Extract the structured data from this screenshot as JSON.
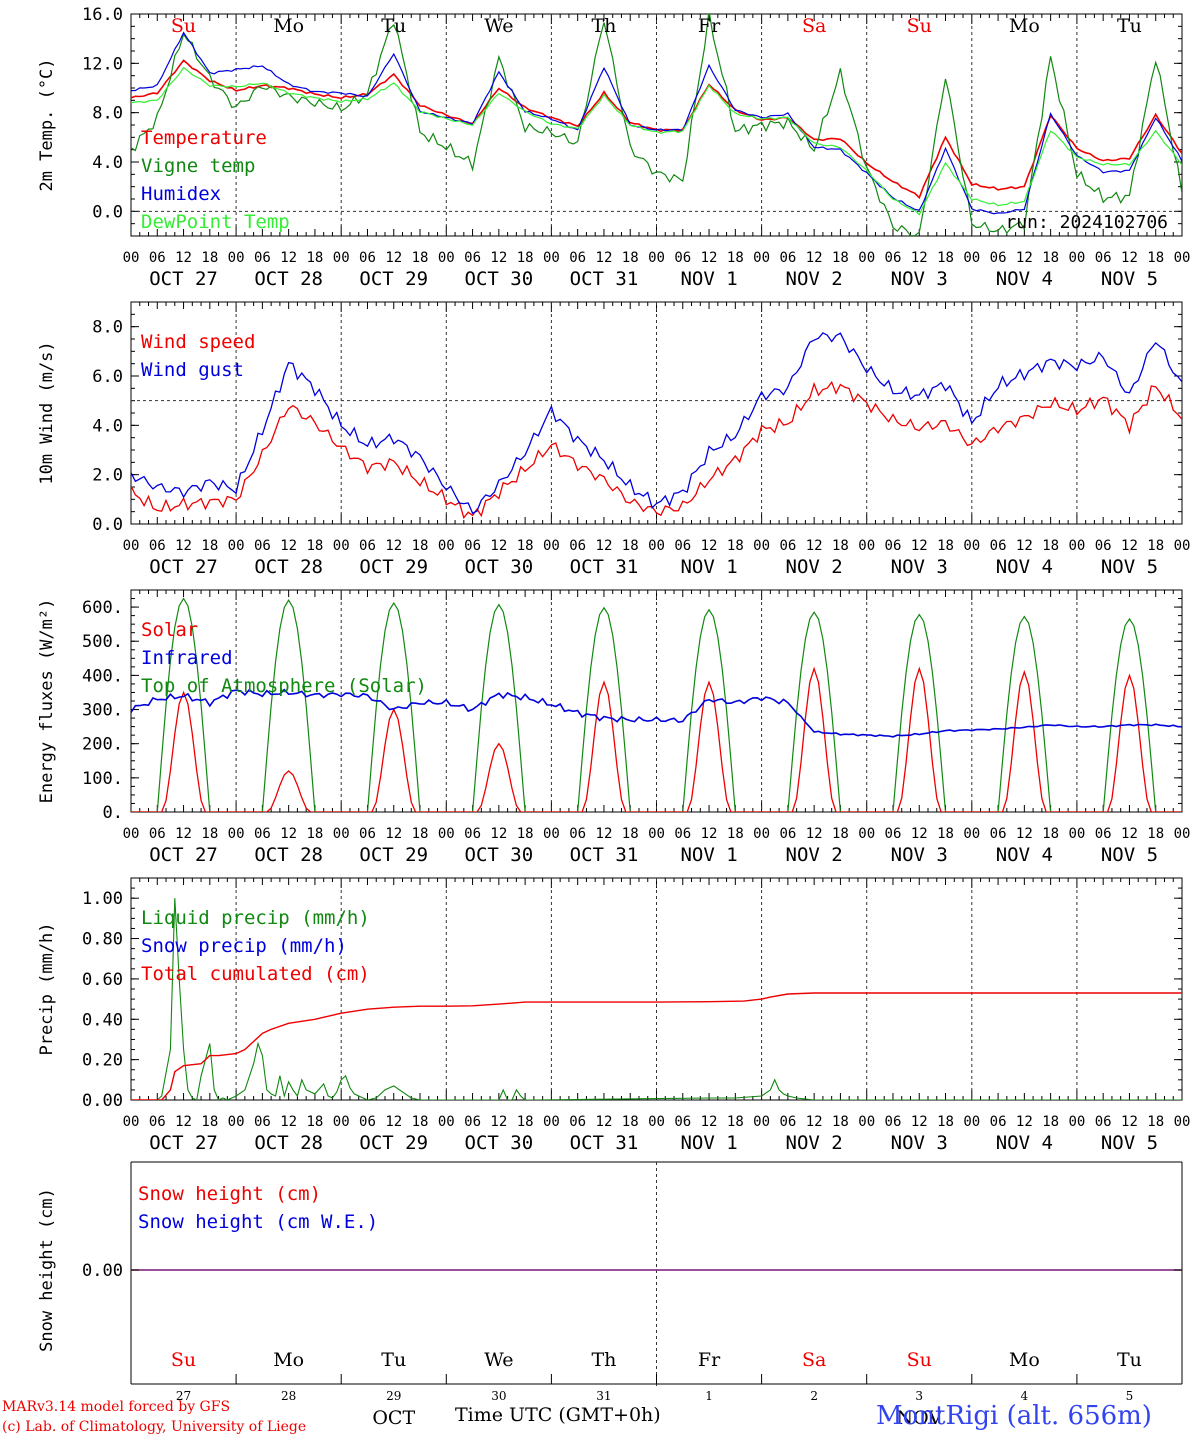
{
  "colors": {
    "red": "#ee0000",
    "green": "#118811",
    "blue": "#0000dd",
    "lightgreen": "#33ee33",
    "purple": "#7a2b8c",
    "titleblue": "#3344ee"
  },
  "day_labels": [
    "Su",
    "Mo",
    "Tu",
    "We",
    "Th",
    "Fr",
    "Sa",
    "Su",
    "Mo",
    "Tu"
  ],
  "day_label_colors": [
    "red",
    "black",
    "black",
    "black",
    "black",
    "black",
    "red",
    "red",
    "black",
    "black"
  ],
  "date_labels": [
    "OCT 27",
    "OCT 28",
    "OCT 29",
    "OCT 30",
    "OCT 31",
    "NOV  1",
    "NOV  2",
    "NOV  3",
    "NOV  4",
    "NOV  5"
  ],
  "hour_labels": [
    "00",
    "06",
    "12",
    "18"
  ],
  "bottom_day_numbers": [
    "27",
    "28",
    "29",
    "30",
    "31",
    "1",
    "2",
    "3",
    "4",
    "5"
  ],
  "bottom_month_labels": [
    "OCT",
    "NOV"
  ],
  "footer": {
    "model": "MARv3.14 model forced by GFS",
    "credit": "(c) Lab. of Climatology, University of Liege",
    "xlabel": "Time UTC (GMT+0h)",
    "station": "MontRigi (alt. 656m)"
  },
  "chart_data": [
    {
      "type": "line",
      "ylabel": "2m Temp. (°C)",
      "ylim": [
        -2,
        16
      ],
      "yticks": [
        0,
        4,
        8,
        12,
        16
      ],
      "ytick_labels": [
        "0.0",
        "4.0",
        "8.0",
        "12.0",
        "16.0"
      ],
      "hline": 0,
      "annotation": "run: 2024102706",
      "x_hours": [
        0,
        6,
        12,
        18,
        24,
        30,
        36,
        42,
        48,
        54,
        60,
        66,
        72,
        78,
        84,
        90,
        96,
        102,
        108,
        114,
        120,
        126,
        132,
        138,
        144,
        150,
        156,
        162,
        168,
        174,
        180,
        186,
        192,
        198,
        204,
        210,
        216,
        222,
        228,
        234,
        240
      ],
      "series": [
        {
          "name": "Temperature",
          "color": "red",
          "values": [
            9.2,
            9.6,
            12.2,
            10.6,
            9.8,
            10.2,
            10.0,
            9.5,
            9.2,
            9.5,
            11.1,
            8.6,
            7.8,
            7.1,
            10.0,
            8.4,
            7.6,
            6.9,
            9.6,
            7.2,
            6.6,
            6.6,
            10.3,
            8.2,
            7.4,
            7.6,
            5.8,
            5.9,
            3.9,
            2.4,
            1.2,
            6.0,
            2.2,
            1.8,
            2.0,
            7.8,
            5.1,
            4.1,
            4.3,
            7.8,
            4.7
          ]
        },
        {
          "name": "Vigne temp",
          "color": "green",
          "values": [
            5.0,
            7.5,
            14.5,
            10.8,
            8.4,
            10.2,
            9.3,
            8.8,
            8.3,
            9.5,
            15.6,
            6.4,
            5.2,
            3.8,
            12.4,
            6.8,
            6.4,
            5.5,
            15.6,
            5.1,
            3.1,
            2.5,
            15.8,
            6.5,
            7.0,
            7.2,
            5.0,
            11.2,
            3.5,
            -1.2,
            -2.0,
            11.0,
            -1.0,
            -1.6,
            -1.0,
            12.5,
            3.0,
            1.1,
            1.2,
            12.5,
            1.5
          ]
        },
        {
          "name": "Humidex",
          "color": "blue",
          "values": [
            9.8,
            10.2,
            14.5,
            11.2,
            11.5,
            11.8,
            10.3,
            9.7,
            9.6,
            9.3,
            12.8,
            8.1,
            7.6,
            7.1,
            11.3,
            8.1,
            7.5,
            6.6,
            11.7,
            7.0,
            6.6,
            6.6,
            11.8,
            8.2,
            7.6,
            7.9,
            5.2,
            5.0,
            3.1,
            1.1,
            0.0,
            5.1,
            0.2,
            -0.2,
            0.2,
            7.9,
            4.5,
            3.2,
            3.3,
            7.6,
            4.1
          ]
        },
        {
          "name": "DewPoint Temp",
          "color": "lightgreen",
          "values": [
            8.8,
            9.0,
            11.6,
            10.2,
            10.1,
            10.4,
            9.6,
            9.2,
            8.9,
            9.1,
            10.4,
            8.1,
            7.5,
            7.0,
            9.6,
            8.1,
            7.1,
            6.7,
            9.4,
            7.0,
            6.4,
            6.5,
            10.2,
            7.9,
            7.5,
            7.6,
            5.5,
            5.2,
            3.3,
            1.0,
            -0.2,
            3.9,
            1.0,
            0.5,
            0.8,
            6.6,
            4.4,
            3.8,
            3.8,
            6.5,
            3.8
          ]
        }
      ]
    },
    {
      "type": "line",
      "ylabel": "10m Wind (m/s)",
      "ylim": [
        0,
        9
      ],
      "yticks": [
        0,
        2,
        4,
        6,
        8
      ],
      "ytick_labels": [
        "0.0",
        "2.0",
        "4.0",
        "6.0",
        "8.0"
      ],
      "hline": 5,
      "x_hours": [
        0,
        6,
        12,
        18,
        24,
        30,
        36,
        42,
        48,
        54,
        60,
        66,
        72,
        78,
        84,
        90,
        96,
        102,
        108,
        114,
        120,
        126,
        132,
        138,
        144,
        150,
        156,
        162,
        168,
        174,
        180,
        186,
        192,
        198,
        204,
        210,
        216,
        222,
        228,
        234,
        240
      ],
      "series": [
        {
          "name": "Wind speed",
          "color": "red",
          "values": [
            1.3,
            0.6,
            0.8,
            0.9,
            1.0,
            2.8,
            4.8,
            4.1,
            3.1,
            2.3,
            2.5,
            1.7,
            1.0,
            0.3,
            1.3,
            2.2,
            3.2,
            2.4,
            1.8,
            0.9,
            0.5,
            0.7,
            1.8,
            2.6,
            3.8,
            4.1,
            5.4,
            5.6,
            4.9,
            4.2,
            3.9,
            4.1,
            3.2,
            3.9,
            4.3,
            4.9,
            4.6,
            5.1,
            4.0,
            5.6,
            4.3
          ]
        },
        {
          "name": "Wind gust",
          "color": "blue",
          "values": [
            2.0,
            1.5,
            1.3,
            1.7,
            1.4,
            3.8,
            6.5,
            5.5,
            4.0,
            3.2,
            3.5,
            2.7,
            1.5,
            0.5,
            1.6,
            2.9,
            4.6,
            3.4,
            2.6,
            1.5,
            0.8,
            1.3,
            2.9,
            3.6,
            5.2,
            5.5,
            7.6,
            7.6,
            6.3,
            5.4,
            5.2,
            5.7,
            4.1,
            5.6,
            6.1,
            6.6,
            6.4,
            6.8,
            5.2,
            7.5,
            5.6
          ]
        }
      ]
    },
    {
      "type": "line",
      "ylabel": "Energy fluxes (W/m²)",
      "ylim": [
        0,
        650
      ],
      "yticks": [
        0,
        100,
        200,
        300,
        400,
        500,
        600
      ],
      "ytick_labels": [
        "0.",
        "100.",
        "200.",
        "300.",
        "400.",
        "500.",
        "600."
      ],
      "series": [
        {
          "name": "Solar",
          "color": "red",
          "peak_values": [
            350,
            120,
            300,
            200,
            380,
            380,
            420,
            420,
            410,
            400
          ]
        },
        {
          "name": "Infrared",
          "color": "blue",
          "x_hours": [
            0,
            6,
            12,
            18,
            24,
            30,
            36,
            42,
            48,
            54,
            60,
            66,
            72,
            78,
            84,
            90,
            96,
            102,
            108,
            114,
            120,
            126,
            132,
            138,
            144,
            150,
            156,
            162,
            168,
            174,
            180,
            186,
            192,
            198,
            204,
            210,
            216,
            222,
            228,
            234,
            240
          ],
          "values": [
            300,
            330,
            340,
            320,
            355,
            345,
            350,
            342,
            345,
            340,
            300,
            320,
            320,
            300,
            345,
            335,
            315,
            290,
            275,
            270,
            270,
            268,
            330,
            320,
            335,
            320,
            235,
            228,
            225,
            222,
            228,
            238,
            240,
            243,
            248,
            255,
            250,
            250,
            255,
            255,
            250
          ]
        },
        {
          "name": "Top of Atmosphere (Solar)",
          "color": "green",
          "peak_values": [
            625,
            620,
            612,
            607,
            598,
            592,
            585,
            578,
            572,
            565
          ]
        }
      ]
    },
    {
      "type": "line",
      "ylabel": "Precip (mm/h)",
      "ylim": [
        0,
        1.1
      ],
      "yticks": [
        0,
        0.2,
        0.4,
        0.6,
        0.8,
        1.0
      ],
      "ytick_labels": [
        "0.00",
        "0.20",
        "0.40",
        "0.60",
        "0.80",
        "1.00"
      ],
      "series": [
        {
          "name": "Liquid precip (mm/h)",
          "color": "green",
          "x_hours": [
            0,
            6,
            7,
            9,
            10,
            11,
            12,
            13,
            14,
            15,
            16,
            18,
            19,
            20,
            21,
            22,
            24,
            26,
            28,
            29,
            30,
            31,
            32,
            33,
            34,
            35,
            36,
            37,
            38,
            39,
            40,
            42,
            44,
            45,
            46,
            47,
            48,
            49,
            50,
            51,
            52,
            54,
            56,
            58,
            60,
            62,
            64,
            66,
            68,
            70,
            72,
            84,
            85,
            86,
            87,
            88,
            89,
            90,
            92,
            132,
            138,
            144,
            146,
            147,
            148,
            149,
            150,
            152,
            156,
            240
          ],
          "values": [
            0,
            0,
            0.02,
            0.25,
            1.0,
            0.6,
            0.25,
            0.05,
            0.01,
            0.0,
            0.12,
            0.28,
            0.05,
            0.0,
            0.01,
            0.0,
            0.02,
            0.05,
            0.18,
            0.28,
            0.22,
            0.05,
            0.03,
            0.02,
            0.12,
            0.02,
            0.09,
            0.05,
            0.02,
            0.1,
            0.05,
            0.03,
            0.08,
            0.02,
            0.01,
            0.04,
            0.1,
            0.12,
            0.06,
            0.03,
            0.02,
            0.0,
            0.01,
            0.05,
            0.07,
            0.04,
            0.01,
            0.0,
            0.0,
            0.0,
            0.0,
            0.0,
            0.05,
            0.0,
            0.0,
            0.05,
            0.02,
            0.0,
            0.0,
            0.01,
            0.01,
            0.02,
            0.05,
            0.1,
            0.05,
            0.03,
            0.02,
            0.01,
            0.0,
            0.0
          ]
        },
        {
          "name": "Snow precip (mm/h)",
          "color": "blue",
          "values": []
        },
        {
          "name": "Total cumulated (cm)",
          "color": "red",
          "x_hours": [
            0,
            7,
            9,
            10,
            12,
            16,
            18,
            20,
            24,
            26,
            28,
            30,
            32,
            36,
            42,
            48,
            54,
            60,
            66,
            72,
            78,
            84,
            90,
            96,
            108,
            120,
            132,
            140,
            144,
            146,
            150,
            156,
            180,
            216,
            240
          ],
          "values": [
            0,
            0,
            0.05,
            0.14,
            0.17,
            0.18,
            0.22,
            0.22,
            0.23,
            0.25,
            0.29,
            0.33,
            0.35,
            0.38,
            0.4,
            0.43,
            0.45,
            0.46,
            0.465,
            0.465,
            0.467,
            0.475,
            0.485,
            0.485,
            0.485,
            0.485,
            0.487,
            0.49,
            0.5,
            0.51,
            0.525,
            0.53,
            0.53,
            0.53,
            0.53
          ]
        }
      ]
    },
    {
      "type": "line",
      "ylabel": "Snow height (cm)",
      "ytick_labels": [
        "0.00"
      ],
      "series": [
        {
          "name": "Snow height (cm)",
          "color": "red",
          "values": [
            0,
            0
          ]
        },
        {
          "name": "Snow height (cm W.E.)",
          "color": "blue",
          "values": [
            0,
            0
          ]
        }
      ]
    }
  ]
}
